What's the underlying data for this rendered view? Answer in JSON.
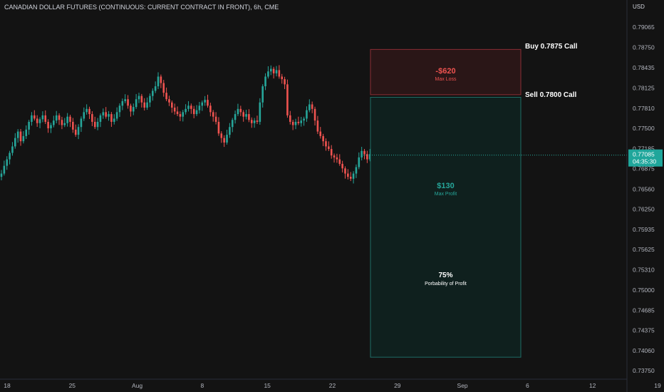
{
  "header": {
    "title": "CANADIAN DOLLAR FUTURES (CONTINUOUS: CURRENT CONTRACT IN FRONT), 6h, CME"
  },
  "colors": {
    "background": "#131313",
    "up": "#26a69a",
    "down": "#ef5350",
    "loss_zone_fill": "#2a1617",
    "loss_zone_border": "#8b2e34",
    "profit_zone_fill": "#0f201e",
    "profit_zone_border": "#1f6e66",
    "price_badge": "#1fa69b"
  },
  "chart_data": {
    "type": "candlestick",
    "title": "CANADIAN DOLLAR FUTURES (CONTINUOUS: CURRENT CONTRACT IN FRONT), 6h, CME",
    "currency_label": "USD",
    "ylim": [
      0.7362,
      0.7922
    ],
    "y_ticks": [
      "0.79065",
      "0.78750",
      "0.78435",
      "0.78125",
      "0.77810",
      "0.77500",
      "0.77185",
      "0.76875",
      "0.76560",
      "0.76250",
      "0.75935",
      "0.75625",
      "0.75310",
      "0.75000",
      "0.74685",
      "0.74375",
      "0.74060",
      "0.73750"
    ],
    "x_ticks": [
      "18",
      "25",
      "Aug",
      "8",
      "15",
      "22",
      "29",
      "Sep",
      "6",
      "12",
      "19"
    ],
    "current_price": {
      "value": "0.77085",
      "countdown": "04:35:30"
    },
    "closes": [
      0.768,
      0.7692,
      0.7702,
      0.7712,
      0.7722,
      0.7735,
      0.7745,
      0.773,
      0.7738,
      0.7748,
      0.776,
      0.777,
      0.7765,
      0.7758,
      0.7764,
      0.777,
      0.776,
      0.775,
      0.7755,
      0.7762,
      0.777,
      0.7763,
      0.7755,
      0.7758,
      0.7768,
      0.776,
      0.7748,
      0.774,
      0.7752,
      0.7765,
      0.7775,
      0.778,
      0.7772,
      0.776,
      0.7752,
      0.776,
      0.777,
      0.7775,
      0.7768,
      0.7772,
      0.776,
      0.7765,
      0.7775,
      0.7785,
      0.7792,
      0.7795,
      0.7785,
      0.7776,
      0.7783,
      0.7795,
      0.78,
      0.779,
      0.7782,
      0.779,
      0.78,
      0.7808,
      0.7815,
      0.783,
      0.782,
      0.7805,
      0.7795,
      0.779,
      0.7782,
      0.7776,
      0.7772,
      0.7768,
      0.7775,
      0.778,
      0.7785,
      0.778,
      0.7772,
      0.7778,
      0.7785,
      0.779,
      0.7794,
      0.7785,
      0.7775,
      0.7768,
      0.776,
      0.7742,
      0.7735,
      0.7728,
      0.774,
      0.7752,
      0.7763,
      0.7772,
      0.778,
      0.7775,
      0.7768,
      0.7772,
      0.7763,
      0.7758,
      0.7762,
      0.776,
      0.779,
      0.7815,
      0.783,
      0.7838,
      0.7842,
      0.7835,
      0.784,
      0.783,
      0.7826,
      0.7818,
      0.777,
      0.776,
      0.7755,
      0.776,
      0.7758,
      0.7762,
      0.7765,
      0.7778,
      0.7787,
      0.778,
      0.7762,
      0.7745,
      0.7738,
      0.773,
      0.7722,
      0.7718,
      0.7708,
      0.7705,
      0.7702,
      0.7695,
      0.7688,
      0.768,
      0.7675,
      0.7672,
      0.768,
      0.769,
      0.7705,
      0.7715,
      0.771,
      0.7702,
      0.771,
      0.7709
    ]
  },
  "options_strategy": {
    "buy_label": "Buy 0.7875 Call",
    "sell_label": "Sell 0.7800 Call",
    "buy_strike": 0.7875,
    "sell_strike": 0.78,
    "max_loss": {
      "value": "-$620",
      "label": "Max Loss"
    },
    "max_profit": {
      "value": "$130",
      "label": "Max Profit"
    },
    "probability": {
      "value": "75%",
      "label": "Porbability of Profit"
    }
  }
}
